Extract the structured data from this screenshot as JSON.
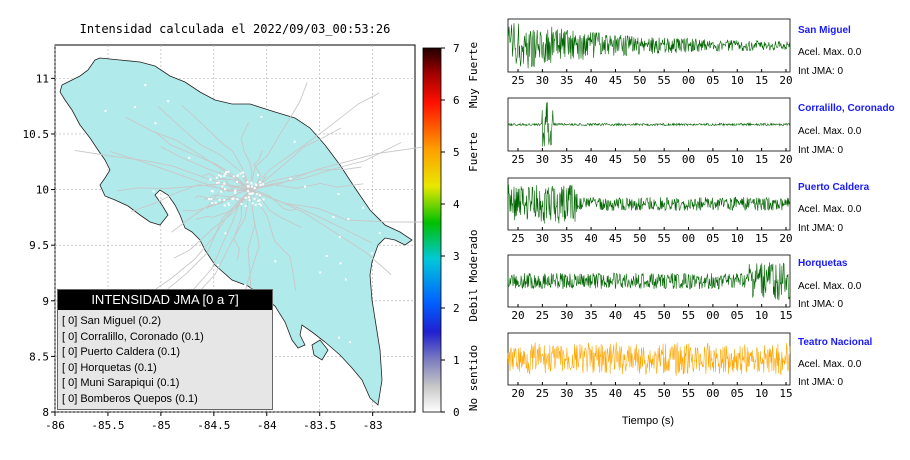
{
  "header": {
    "title": "Intensidad calculada el 2022/09/03_00:53:26"
  },
  "map": {
    "x_ticks": [
      "-86",
      "-85.5",
      "-85",
      "-84.5",
      "-84",
      "-83.5",
      "-83"
    ],
    "y_ticks": [
      "11",
      "10.5",
      "10",
      "9.5",
      "9",
      "8.5",
      "8"
    ],
    "land_color": "#b0eaea"
  },
  "colorbar": {
    "ticks": [
      "7",
      "6",
      "5",
      "4",
      "3",
      "2",
      "1",
      "0"
    ],
    "labels": [
      "Muy Fuerte",
      "Fuerte",
      "Moderado",
      "Debil",
      "No sentido"
    ]
  },
  "legend": {
    "title": "INTENSIDAD JMA [0 a 7]",
    "rows": [
      "[ 0]  San Miguel (0.2)",
      "[ 0]  Corralillo, Coronado (0.1)",
      "[ 0]  Puerto Caldera (0.1)",
      "[ 0]  Horquetas (0.1)",
      "[ 0]  Muni Sarapiqui (0.1)",
      "[ 0]  Bomberos Quepos (0.1)"
    ]
  },
  "stations": [
    {
      "name": "San Miguel",
      "accel": "Acel. Max. 0.0",
      "jma": "Int JMA: 0",
      "color": "#006400",
      "ticks": [
        "25",
        "30",
        "35",
        "40",
        "45",
        "50",
        "55",
        "00",
        "05",
        "10",
        "15",
        "20"
      ]
    },
    {
      "name": "Corralillo, Coronado",
      "accel": "Acel. Max. 0.0",
      "jma": "Int JMA: 0",
      "color": "#006400",
      "ticks": [
        "25",
        "30",
        "35",
        "40",
        "45",
        "50",
        "55",
        "00",
        "05",
        "10",
        "15",
        "20"
      ]
    },
    {
      "name": "Puerto Caldera",
      "accel": "Acel. Max. 0.0",
      "jma": "Int JMA: 0",
      "color": "#006400",
      "ticks": [
        "25",
        "30",
        "35",
        "40",
        "45",
        "50",
        "55",
        "00",
        "05",
        "10",
        "15",
        "20"
      ]
    },
    {
      "name": "Horquetas",
      "accel": "Acel. Max. 0.0",
      "jma": "Int JMA: 0",
      "color": "#006400",
      "ticks": [
        "20",
        "25",
        "30",
        "35",
        "40",
        "45",
        "50",
        "55",
        "00",
        "05",
        "10",
        "15"
      ]
    },
    {
      "name": "Teatro Nacional",
      "accel": "Acel. Max. 0.0",
      "jma": "Int JMA: 0",
      "color": "#ffa500",
      "ticks": [
        "20",
        "25",
        "30",
        "35",
        "40",
        "45",
        "50",
        "55",
        "00",
        "05",
        "10",
        "15"
      ]
    }
  ],
  "time_axis_label": "Tiempo (s)",
  "chart_data": [
    {
      "type": "scatter",
      "title": "Intensidad calculada el 2022/09/03_00:53:26",
      "xlim": [
        -86,
        -82.6
      ],
      "ylim": [
        8,
        11.3
      ],
      "legend_title": "INTENSIDAD JMA [0 a 7]",
      "legend_entries": [
        {
          "station": "San Miguel",
          "jma": 0,
          "intensity": 0.2
        },
        {
          "station": "Corralillo, Coronado",
          "jma": 0,
          "intensity": 0.1
        },
        {
          "station": "Puerto Caldera",
          "jma": 0,
          "intensity": 0.1
        },
        {
          "station": "Horquetas",
          "jma": 0,
          "intensity": 0.1
        },
        {
          "station": "Muni Sarapiqui",
          "jma": 0,
          "intensity": 0.1
        },
        {
          "station": "Bomberos Quepos",
          "jma": 0,
          "intensity": 0.1
        }
      ],
      "colorbar": {
        "range": [
          0,
          7
        ],
        "labels": [
          "No sentido",
          "Debil",
          "Moderado",
          "Fuerte",
          "Muy Fuerte"
        ]
      }
    },
    {
      "type": "line",
      "series": [
        {
          "name": "San Miguel",
          "acel_max": 0.0,
          "int_jma": 0
        }
      ]
    },
    {
      "type": "line",
      "series": [
        {
          "name": "Corralillo, Coronado",
          "acel_max": 0.0,
          "int_jma": 0
        }
      ]
    },
    {
      "type": "line",
      "series": [
        {
          "name": "Puerto Caldera",
          "acel_max": 0.0,
          "int_jma": 0
        }
      ]
    },
    {
      "type": "line",
      "series": [
        {
          "name": "Horquetas",
          "acel_max": 0.0,
          "int_jma": 0
        }
      ]
    },
    {
      "type": "line",
      "series": [
        {
          "name": "Teatro Nacional",
          "acel_max": 0.0,
          "int_jma": 0
        }
      ]
    }
  ]
}
